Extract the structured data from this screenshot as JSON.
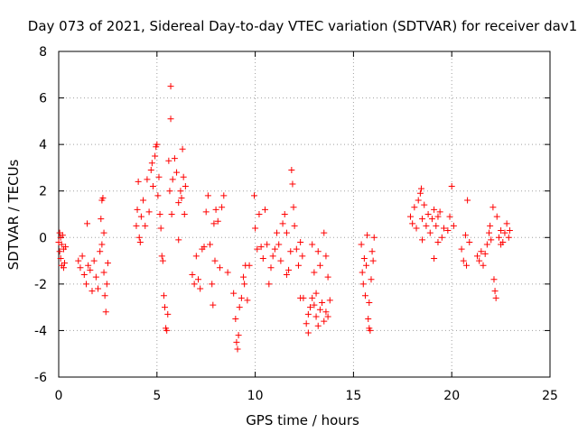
{
  "chart_data": {
    "type": "scatter",
    "title": "Day 073 of 2021, Sidereal Day-to-day VTEC variation (SDTVAR) for receiver dav1",
    "xlabel": "GPS time / hours",
    "ylabel": "SDTVAR / TECUs",
    "xlim": [
      0,
      25
    ],
    "ylim": [
      -6,
      8
    ],
    "xticks": [
      0,
      5,
      10,
      15,
      20,
      25
    ],
    "yticks": [
      -6,
      -4,
      -2,
      0,
      2,
      4,
      6,
      8
    ],
    "xtick_labels": [
      "0",
      "5",
      "10",
      "15",
      "20",
      "25"
    ],
    "ytick_labels": [
      "-6",
      "-4",
      "-2",
      "0",
      "2",
      "4",
      "6",
      "8"
    ],
    "grid": true,
    "marker": "plus",
    "color": "#ff0000",
    "series": [
      {
        "name": "dav1",
        "points": [
          [
            0.0,
            -0.2
          ],
          [
            0.05,
            -0.6
          ],
          [
            0.1,
            -0.9
          ],
          [
            0.15,
            -0.3
          ],
          [
            0.2,
            0.1
          ],
          [
            0.25,
            -0.5
          ],
          [
            0.3,
            -1.1
          ],
          [
            0.35,
            -0.4
          ],
          [
            0.05,
            0.2
          ],
          [
            0.15,
            -1.2
          ],
          [
            0.25,
            -1.3
          ],
          [
            0.1,
            0.0
          ],
          [
            1.0,
            -1.0
          ],
          [
            1.1,
            -1.3
          ],
          [
            1.2,
            -0.8
          ],
          [
            1.3,
            -1.6
          ],
          [
            1.4,
            -2.0
          ],
          [
            1.5,
            -1.2
          ],
          [
            1.45,
            0.6
          ],
          [
            1.6,
            -1.4
          ],
          [
            1.7,
            -2.3
          ],
          [
            1.8,
            -1.0
          ],
          [
            1.9,
            -1.7
          ],
          [
            2.0,
            -2.2
          ],
          [
            2.1,
            -0.6
          ],
          [
            2.15,
            0.8
          ],
          [
            2.2,
            1.6
          ],
          [
            2.25,
            1.7
          ],
          [
            2.3,
            -1.5
          ],
          [
            2.35,
            -2.5
          ],
          [
            2.4,
            -3.2
          ],
          [
            2.45,
            -2.0
          ],
          [
            2.5,
            -1.1
          ],
          [
            2.3,
            0.2
          ],
          [
            2.2,
            -0.3
          ],
          [
            3.95,
            0.5
          ],
          [
            4.0,
            1.2
          ],
          [
            4.05,
            2.4
          ],
          [
            4.1,
            0.0
          ],
          [
            4.15,
            -0.2
          ],
          [
            4.2,
            0.9
          ],
          [
            4.3,
            1.6
          ],
          [
            4.4,
            0.5
          ],
          [
            4.5,
            2.5
          ],
          [
            4.6,
            1.1
          ],
          [
            4.7,
            2.9
          ],
          [
            4.75,
            3.2
          ],
          [
            4.8,
            2.2
          ],
          [
            4.9,
            3.5
          ],
          [
            4.95,
            3.9
          ],
          [
            5.0,
            4.0
          ],
          [
            5.05,
            1.8
          ],
          [
            5.1,
            2.6
          ],
          [
            5.15,
            1.0
          ],
          [
            5.2,
            0.4
          ],
          [
            5.25,
            -0.8
          ],
          [
            5.3,
            -1.0
          ],
          [
            5.35,
            -2.5
          ],
          [
            5.4,
            -3.0
          ],
          [
            5.45,
            -3.9
          ],
          [
            5.5,
            -4.0
          ],
          [
            5.55,
            -3.3
          ],
          [
            5.6,
            3.3
          ],
          [
            5.65,
            2.0
          ],
          [
            5.7,
            6.5
          ],
          [
            5.7,
            5.1
          ],
          [
            5.75,
            1.0
          ],
          [
            5.8,
            2.5
          ],
          [
            5.9,
            3.4
          ],
          [
            6.0,
            2.8
          ],
          [
            6.1,
            1.5
          ],
          [
            6.2,
            2.0
          ],
          [
            6.25,
            1.7
          ],
          [
            6.3,
            3.8
          ],
          [
            6.35,
            2.6
          ],
          [
            6.4,
            1.0
          ],
          [
            6.45,
            2.2
          ],
          [
            6.1,
            -0.1
          ],
          [
            6.8,
            -1.6
          ],
          [
            6.9,
            -2.0
          ],
          [
            7.0,
            -0.8
          ],
          [
            7.1,
            -1.8
          ],
          [
            7.2,
            -2.2
          ],
          [
            7.3,
            -0.5
          ],
          [
            7.4,
            -0.4
          ],
          [
            7.5,
            1.1
          ],
          [
            7.6,
            1.8
          ],
          [
            7.7,
            -0.3
          ],
          [
            7.8,
            -2.0
          ],
          [
            7.85,
            -2.9
          ],
          [
            7.9,
            0.6
          ],
          [
            7.95,
            -1.0
          ],
          [
            8.0,
            1.2
          ],
          [
            8.1,
            0.7
          ],
          [
            8.2,
            -1.3
          ],
          [
            8.3,
            1.3
          ],
          [
            8.4,
            1.8
          ],
          [
            8.6,
            -1.5
          ],
          [
            8.9,
            -2.4
          ],
          [
            9.0,
            -3.5
          ],
          [
            9.05,
            -4.5
          ],
          [
            9.1,
            -4.8
          ],
          [
            9.15,
            -4.2
          ],
          [
            9.2,
            -3.0
          ],
          [
            9.3,
            -2.6
          ],
          [
            9.4,
            -1.7
          ],
          [
            9.5,
            -1.2
          ],
          [
            9.6,
            -2.7
          ],
          [
            9.7,
            -1.2
          ],
          [
            9.45,
            -2.0
          ],
          [
            9.95,
            1.8
          ],
          [
            10.0,
            0.4
          ],
          [
            10.1,
            -0.5
          ],
          [
            10.2,
            1.0
          ],
          [
            10.3,
            -0.4
          ],
          [
            10.4,
            -0.9
          ],
          [
            10.5,
            1.2
          ],
          [
            10.6,
            -0.3
          ],
          [
            10.7,
            -2.0
          ],
          [
            10.8,
            -1.3
          ],
          [
            10.9,
            -0.8
          ],
          [
            11.0,
            -0.5
          ],
          [
            11.1,
            0.2
          ],
          [
            11.2,
            -0.3
          ],
          [
            11.3,
            -1.0
          ],
          [
            11.4,
            0.6
          ],
          [
            11.5,
            1.0
          ],
          [
            11.6,
            0.2
          ],
          [
            11.7,
            -1.4
          ],
          [
            11.8,
            -0.6
          ],
          [
            11.85,
            2.9
          ],
          [
            11.9,
            2.3
          ],
          [
            11.95,
            1.3
          ],
          [
            12.0,
            0.5
          ],
          [
            12.1,
            -0.5
          ],
          [
            12.2,
            -1.2
          ],
          [
            12.3,
            -0.2
          ],
          [
            12.4,
            -0.8
          ],
          [
            12.45,
            -2.6
          ],
          [
            12.3,
            -2.6
          ],
          [
            11.6,
            -1.6
          ],
          [
            12.6,
            -3.7
          ],
          [
            12.7,
            -3.3
          ],
          [
            12.8,
            -3.0
          ],
          [
            12.9,
            -2.6
          ],
          [
            13.0,
            -2.9
          ],
          [
            13.1,
            -3.4
          ],
          [
            13.2,
            -3.8
          ],
          [
            13.3,
            -3.1
          ],
          [
            13.4,
            -2.8
          ],
          [
            13.5,
            -3.6
          ],
          [
            13.6,
            -3.2
          ],
          [
            13.7,
            -3.4
          ],
          [
            13.8,
            -2.7
          ],
          [
            13.0,
            -1.5
          ],
          [
            13.2,
            -0.6
          ],
          [
            13.5,
            0.2
          ],
          [
            13.6,
            -0.8
          ],
          [
            12.7,
            -4.1
          ],
          [
            13.1,
            -2.4
          ],
          [
            12.9,
            -0.3
          ],
          [
            13.3,
            -1.2
          ],
          [
            13.7,
            -1.7
          ],
          [
            15.4,
            -0.3
          ],
          [
            15.45,
            -1.5
          ],
          [
            15.5,
            -2.0
          ],
          [
            15.55,
            -0.9
          ],
          [
            15.6,
            -2.5
          ],
          [
            15.65,
            -1.2
          ],
          [
            15.7,
            0.1
          ],
          [
            15.75,
            -3.5
          ],
          [
            15.8,
            -3.9
          ],
          [
            15.85,
            -4.0
          ],
          [
            15.9,
            -1.8
          ],
          [
            15.95,
            -0.6
          ],
          [
            16.0,
            -1.0
          ],
          [
            16.05,
            0.0
          ],
          [
            15.8,
            -2.8
          ],
          [
            17.9,
            0.9
          ],
          [
            18.0,
            0.6
          ],
          [
            18.1,
            1.3
          ],
          [
            18.2,
            0.4
          ],
          [
            18.3,
            1.6
          ],
          [
            18.4,
            1.9
          ],
          [
            18.45,
            2.1
          ],
          [
            18.5,
            0.8
          ],
          [
            18.6,
            1.4
          ],
          [
            18.7,
            0.5
          ],
          [
            18.8,
            1.0
          ],
          [
            18.9,
            0.2
          ],
          [
            19.0,
            0.8
          ],
          [
            19.1,
            1.2
          ],
          [
            19.2,
            0.5
          ],
          [
            19.3,
            0.9
          ],
          [
            19.4,
            1.1
          ],
          [
            19.5,
            0.0
          ],
          [
            19.6,
            0.4
          ],
          [
            19.8,
            0.3
          ],
          [
            19.9,
            0.9
          ],
          [
            20.0,
            2.2
          ],
          [
            18.5,
            -0.1
          ],
          [
            19.1,
            -0.9
          ],
          [
            19.3,
            -0.2
          ],
          [
            20.1,
            0.5
          ],
          [
            20.5,
            -0.5
          ],
          [
            20.6,
            -1.0
          ],
          [
            20.7,
            0.1
          ],
          [
            20.75,
            -1.2
          ],
          [
            20.8,
            1.6
          ],
          [
            20.9,
            -0.2
          ],
          [
            21.3,
            -0.8
          ],
          [
            21.4,
            -1.0
          ],
          [
            21.5,
            -0.6
          ],
          [
            21.6,
            -1.2
          ],
          [
            21.7,
            -0.7
          ],
          [
            21.8,
            -0.3
          ],
          [
            21.9,
            0.2
          ],
          [
            21.95,
            0.5
          ],
          [
            22.0,
            -0.1
          ],
          [
            22.1,
            1.3
          ],
          [
            22.15,
            -1.8
          ],
          [
            22.2,
            -2.3
          ],
          [
            22.25,
            -2.6
          ],
          [
            22.3,
            0.9
          ],
          [
            22.4,
            0.0
          ],
          [
            22.5,
            0.3
          ],
          [
            22.6,
            -0.2
          ],
          [
            22.7,
            0.2
          ],
          [
            22.8,
            0.6
          ],
          [
            22.9,
            0.0
          ],
          [
            22.95,
            0.3
          ],
          [
            22.5,
            -0.3
          ]
        ]
      }
    ]
  }
}
